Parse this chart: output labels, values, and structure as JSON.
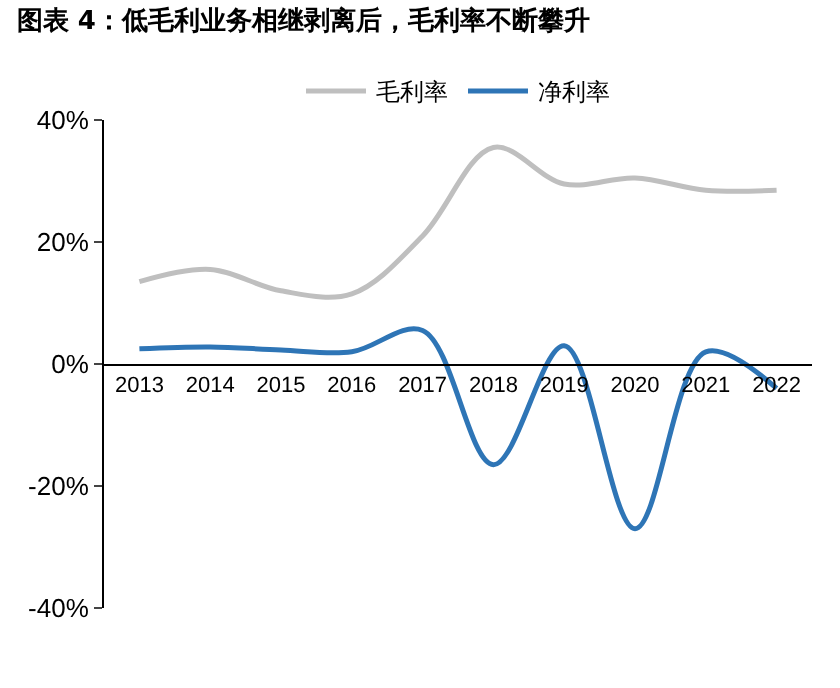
{
  "chart_data": {
    "type": "line",
    "title": "图表 4：低毛利业务相继剥离后，毛利率不断攀升",
    "categories": [
      "2013",
      "2014",
      "2015",
      "2016",
      "2017",
      "2018",
      "2019",
      "2020",
      "2021",
      "2022"
    ],
    "series": [
      {
        "name": "毛利率",
        "color": "#bfbfbf",
        "values": [
          13.5,
          15.5,
          12,
          11.5,
          21,
          35.5,
          29.5,
          30.5,
          28.5,
          28.5
        ]
      },
      {
        "name": "净利率",
        "color": "#2e75b6",
        "values": [
          2.5,
          2.8,
          2.3,
          2,
          5.5,
          -16.5,
          3,
          -27,
          2,
          -4
        ]
      }
    ],
    "ylim": [
      -40,
      40
    ],
    "yticks": [
      {
        "value": -40,
        "label": "-40%"
      },
      {
        "value": -20,
        "label": "-20%"
      },
      {
        "value": 0,
        "label": "0%"
      },
      {
        "value": 20,
        "label": "20%"
      },
      {
        "value": 40,
        "label": "40%"
      }
    ],
    "grid": false,
    "legend": "top",
    "marker": "none",
    "line_style": "solid"
  }
}
